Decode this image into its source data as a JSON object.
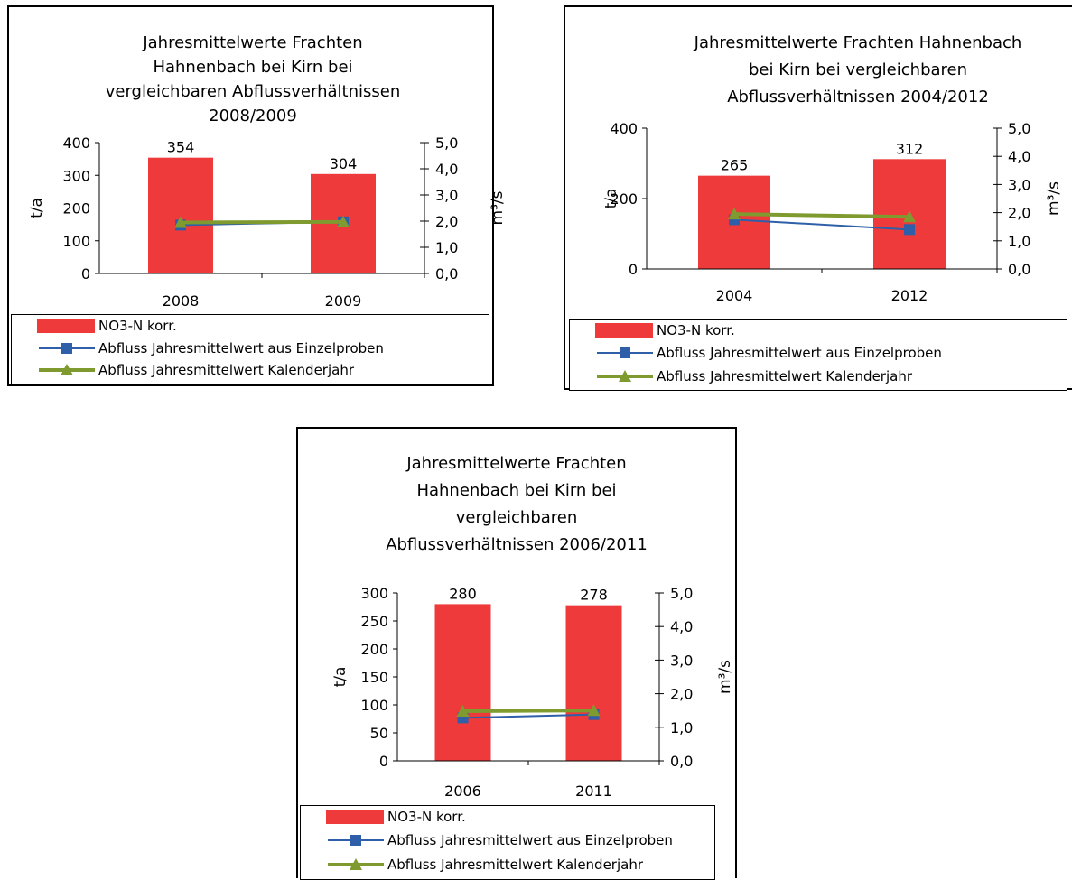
{
  "chart_data": [
    {
      "type": "bar",
      "title": [
        "Jahresmittelwerte Frachten",
        "Hahnenbach bei Kirn  bei",
        "vergleichbaren Abflussverhältnissen",
        "2008/2009"
      ],
      "ylabel": "t/a",
      "y2label": "m³/s",
      "categories": [
        "2008",
        "2009"
      ],
      "ylim": [
        0,
        400
      ],
      "yticks": [
        "0",
        "100",
        "200",
        "300",
        "400"
      ],
      "yticks_values": [
        0,
        100,
        200,
        300,
        400
      ],
      "y2lim": [
        0,
        5
      ],
      "y2ticks": [
        "0,0",
        "1,0",
        "2,0",
        "3,0",
        "4,0",
        "5,0"
      ],
      "y2ticks_values": [
        0,
        1,
        2,
        3,
        4,
        5
      ],
      "series": [
        {
          "name": "NO3-N korr.",
          "kind": "bar",
          "axis": "left",
          "values": [
            354,
            304
          ],
          "labels": [
            "354",
            "304"
          ],
          "color": "#ee3a3a"
        },
        {
          "name": "Abfluss Jahresmittelwert aus Einzelproben",
          "kind": "line",
          "axis": "right",
          "marker": "square",
          "values": [
            1.85,
            1.97
          ],
          "color": "#2e5fa8"
        },
        {
          "name": "Abfluss Jahresmittelwert Kalenderjahr",
          "kind": "line",
          "axis": "right",
          "marker": "triangle",
          "values": [
            1.95,
            1.97
          ],
          "color": "#7f9a2e"
        }
      ]
    },
    {
      "type": "bar",
      "title": [
        "Jahresmittelwerte Frachten Hahnenbach",
        "bei Kirn  bei vergleichbaren",
        "Abflussverhältnissen 2004/2012"
      ],
      "ylabel": "t/a",
      "y2label": "m³/s",
      "categories": [
        "2004",
        "2012"
      ],
      "ylim": [
        0,
        400
      ],
      "yticks": [
        "0",
        "200",
        "400"
      ],
      "yticks_values": [
        0,
        200,
        400
      ],
      "y2lim": [
        0,
        5
      ],
      "y2ticks": [
        "0,0",
        "1,0",
        "2,0",
        "3,0",
        "4,0",
        "5,0"
      ],
      "y2ticks_values": [
        0,
        1,
        2,
        3,
        4,
        5
      ],
      "series": [
        {
          "name": "NO3-N korr.",
          "kind": "bar",
          "axis": "left",
          "values": [
            265,
            312
          ],
          "labels": [
            "265",
            "312"
          ],
          "color": "#ee3a3a"
        },
        {
          "name": "Abfluss Jahresmittelwert aus Einzelproben",
          "kind": "line",
          "axis": "right",
          "marker": "square",
          "values": [
            1.75,
            1.4
          ],
          "color": "#2e5fa8"
        },
        {
          "name": "Abfluss Jahresmittelwert Kalenderjahr",
          "kind": "line",
          "axis": "right",
          "marker": "triangle",
          "values": [
            1.95,
            1.85
          ],
          "color": "#7f9a2e"
        }
      ]
    },
    {
      "type": "bar",
      "title": [
        "Jahresmittelwerte Frachten",
        "Hahnenbach bei Kirn  bei",
        "vergleichbaren",
        "Abflussverhältnissen 2006/2011"
      ],
      "ylabel": "t/a",
      "y2label": "m³/s",
      "categories": [
        "2006",
        "2011"
      ],
      "ylim": [
        0,
        300
      ],
      "yticks": [
        "0",
        "50",
        "100",
        "150",
        "200",
        "250",
        "300"
      ],
      "yticks_values": [
        0,
        50,
        100,
        150,
        200,
        250,
        300
      ],
      "y2lim": [
        0,
        5
      ],
      "y2ticks": [
        "0,0",
        "1,0",
        "2,0",
        "3,0",
        "4,0",
        "5,0"
      ],
      "y2ticks_values": [
        0,
        1,
        2,
        3,
        4,
        5
      ],
      "series": [
        {
          "name": "NO3-N korr.",
          "kind": "bar",
          "axis": "left",
          "values": [
            280,
            278
          ],
          "labels": [
            "280",
            "278"
          ],
          "color": "#ee3a3a"
        },
        {
          "name": "Abfluss Jahresmittelwert aus Einzelproben",
          "kind": "line",
          "axis": "right",
          "marker": "square",
          "values": [
            1.28,
            1.38
          ],
          "color": "#2e5fa8"
        },
        {
          "name": "Abfluss Jahresmittelwert Kalenderjahr",
          "kind": "line",
          "axis": "right",
          "marker": "triangle",
          "values": [
            1.48,
            1.5
          ],
          "color": "#7f9a2e"
        }
      ]
    }
  ]
}
